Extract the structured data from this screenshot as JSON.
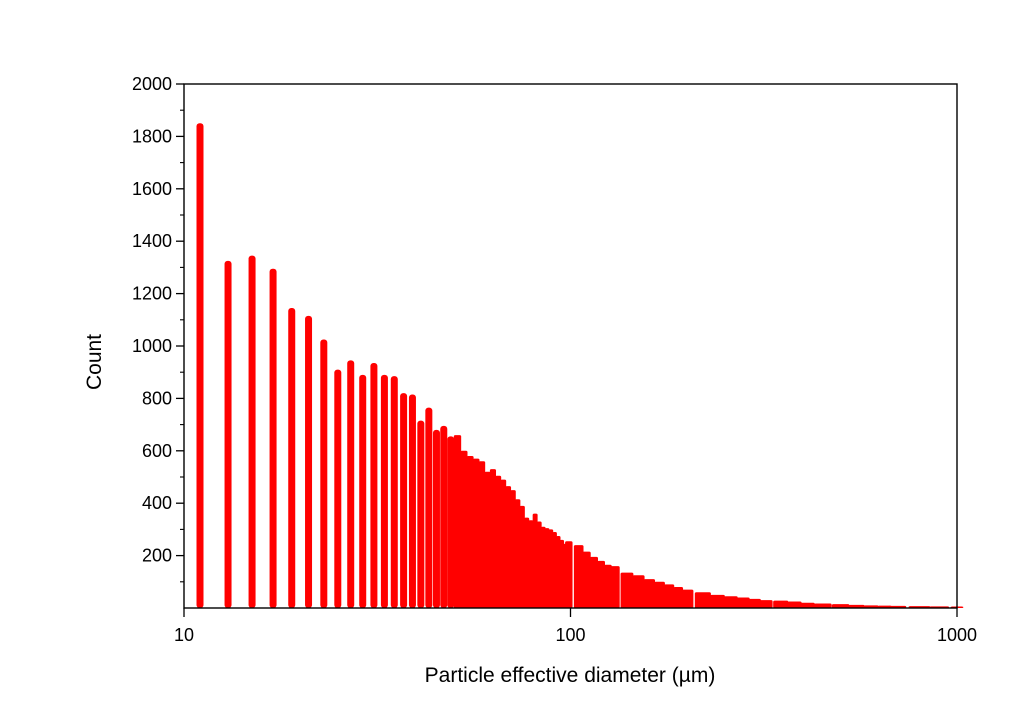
{
  "chart_data": {
    "type": "bar",
    "title": "",
    "xlabel": "Particle effective diameter (µm)",
    "ylabel": "Count",
    "x_scale": "log",
    "xlim": [
      10,
      1000
    ],
    "ylim": [
      0,
      2000
    ],
    "x_ticks": [
      10,
      100,
      1000
    ],
    "x_tick_labels": [
      "10",
      "100",
      "1000"
    ],
    "y_ticks": [
      200,
      400,
      600,
      800,
      1000,
      1200,
      1400,
      1600,
      1800,
      2000
    ],
    "y_tick_labels": [
      "200",
      "400",
      "600",
      "800",
      "1000",
      "1200",
      "1400",
      "1600",
      "1800",
      "2000"
    ],
    "grid": false,
    "legend": "none",
    "bar_color": "#ff0000",
    "series": [
      {
        "x": [
          11,
          13,
          15,
          17,
          19,
          21,
          23,
          25,
          27,
          29,
          31,
          33,
          35,
          37,
          39,
          41,
          43,
          45,
          47,
          49,
          51,
          53,
          55,
          57,
          59,
          61,
          63,
          65,
          67,
          69,
          71,
          73,
          75,
          77,
          79,
          81,
          83,
          85,
          87,
          89,
          91,
          93,
          95,
          97,
          99,
          105,
          110,
          115,
          120,
          125,
          130,
          140,
          150,
          160,
          170,
          180,
          190,
          200,
          220,
          240,
          260,
          280,
          300,
          320,
          350,
          380,
          410,
          450,
          500,
          550,
          600,
          650,
          700,
          800,
          900,
          1000
        ],
        "values": [
          1850,
          1325,
          1345,
          1295,
          1145,
          1115,
          1025,
          910,
          945,
          890,
          935,
          890,
          885,
          820,
          815,
          715,
          765,
          680,
          695,
          655,
          660,
          600,
          580,
          570,
          560,
          520,
          530,
          505,
          490,
          465,
          450,
          415,
          390,
          345,
          335,
          360,
          330,
          310,
          305,
          300,
          290,
          275,
          260,
          245,
          255,
          240,
          215,
          195,
          180,
          165,
          160,
          135,
          125,
          110,
          100,
          90,
          80,
          70,
          60,
          50,
          45,
          40,
          35,
          30,
          28,
          25,
          20,
          17,
          15,
          12,
          10,
          9,
          8,
          7,
          6,
          5
        ]
      }
    ]
  }
}
